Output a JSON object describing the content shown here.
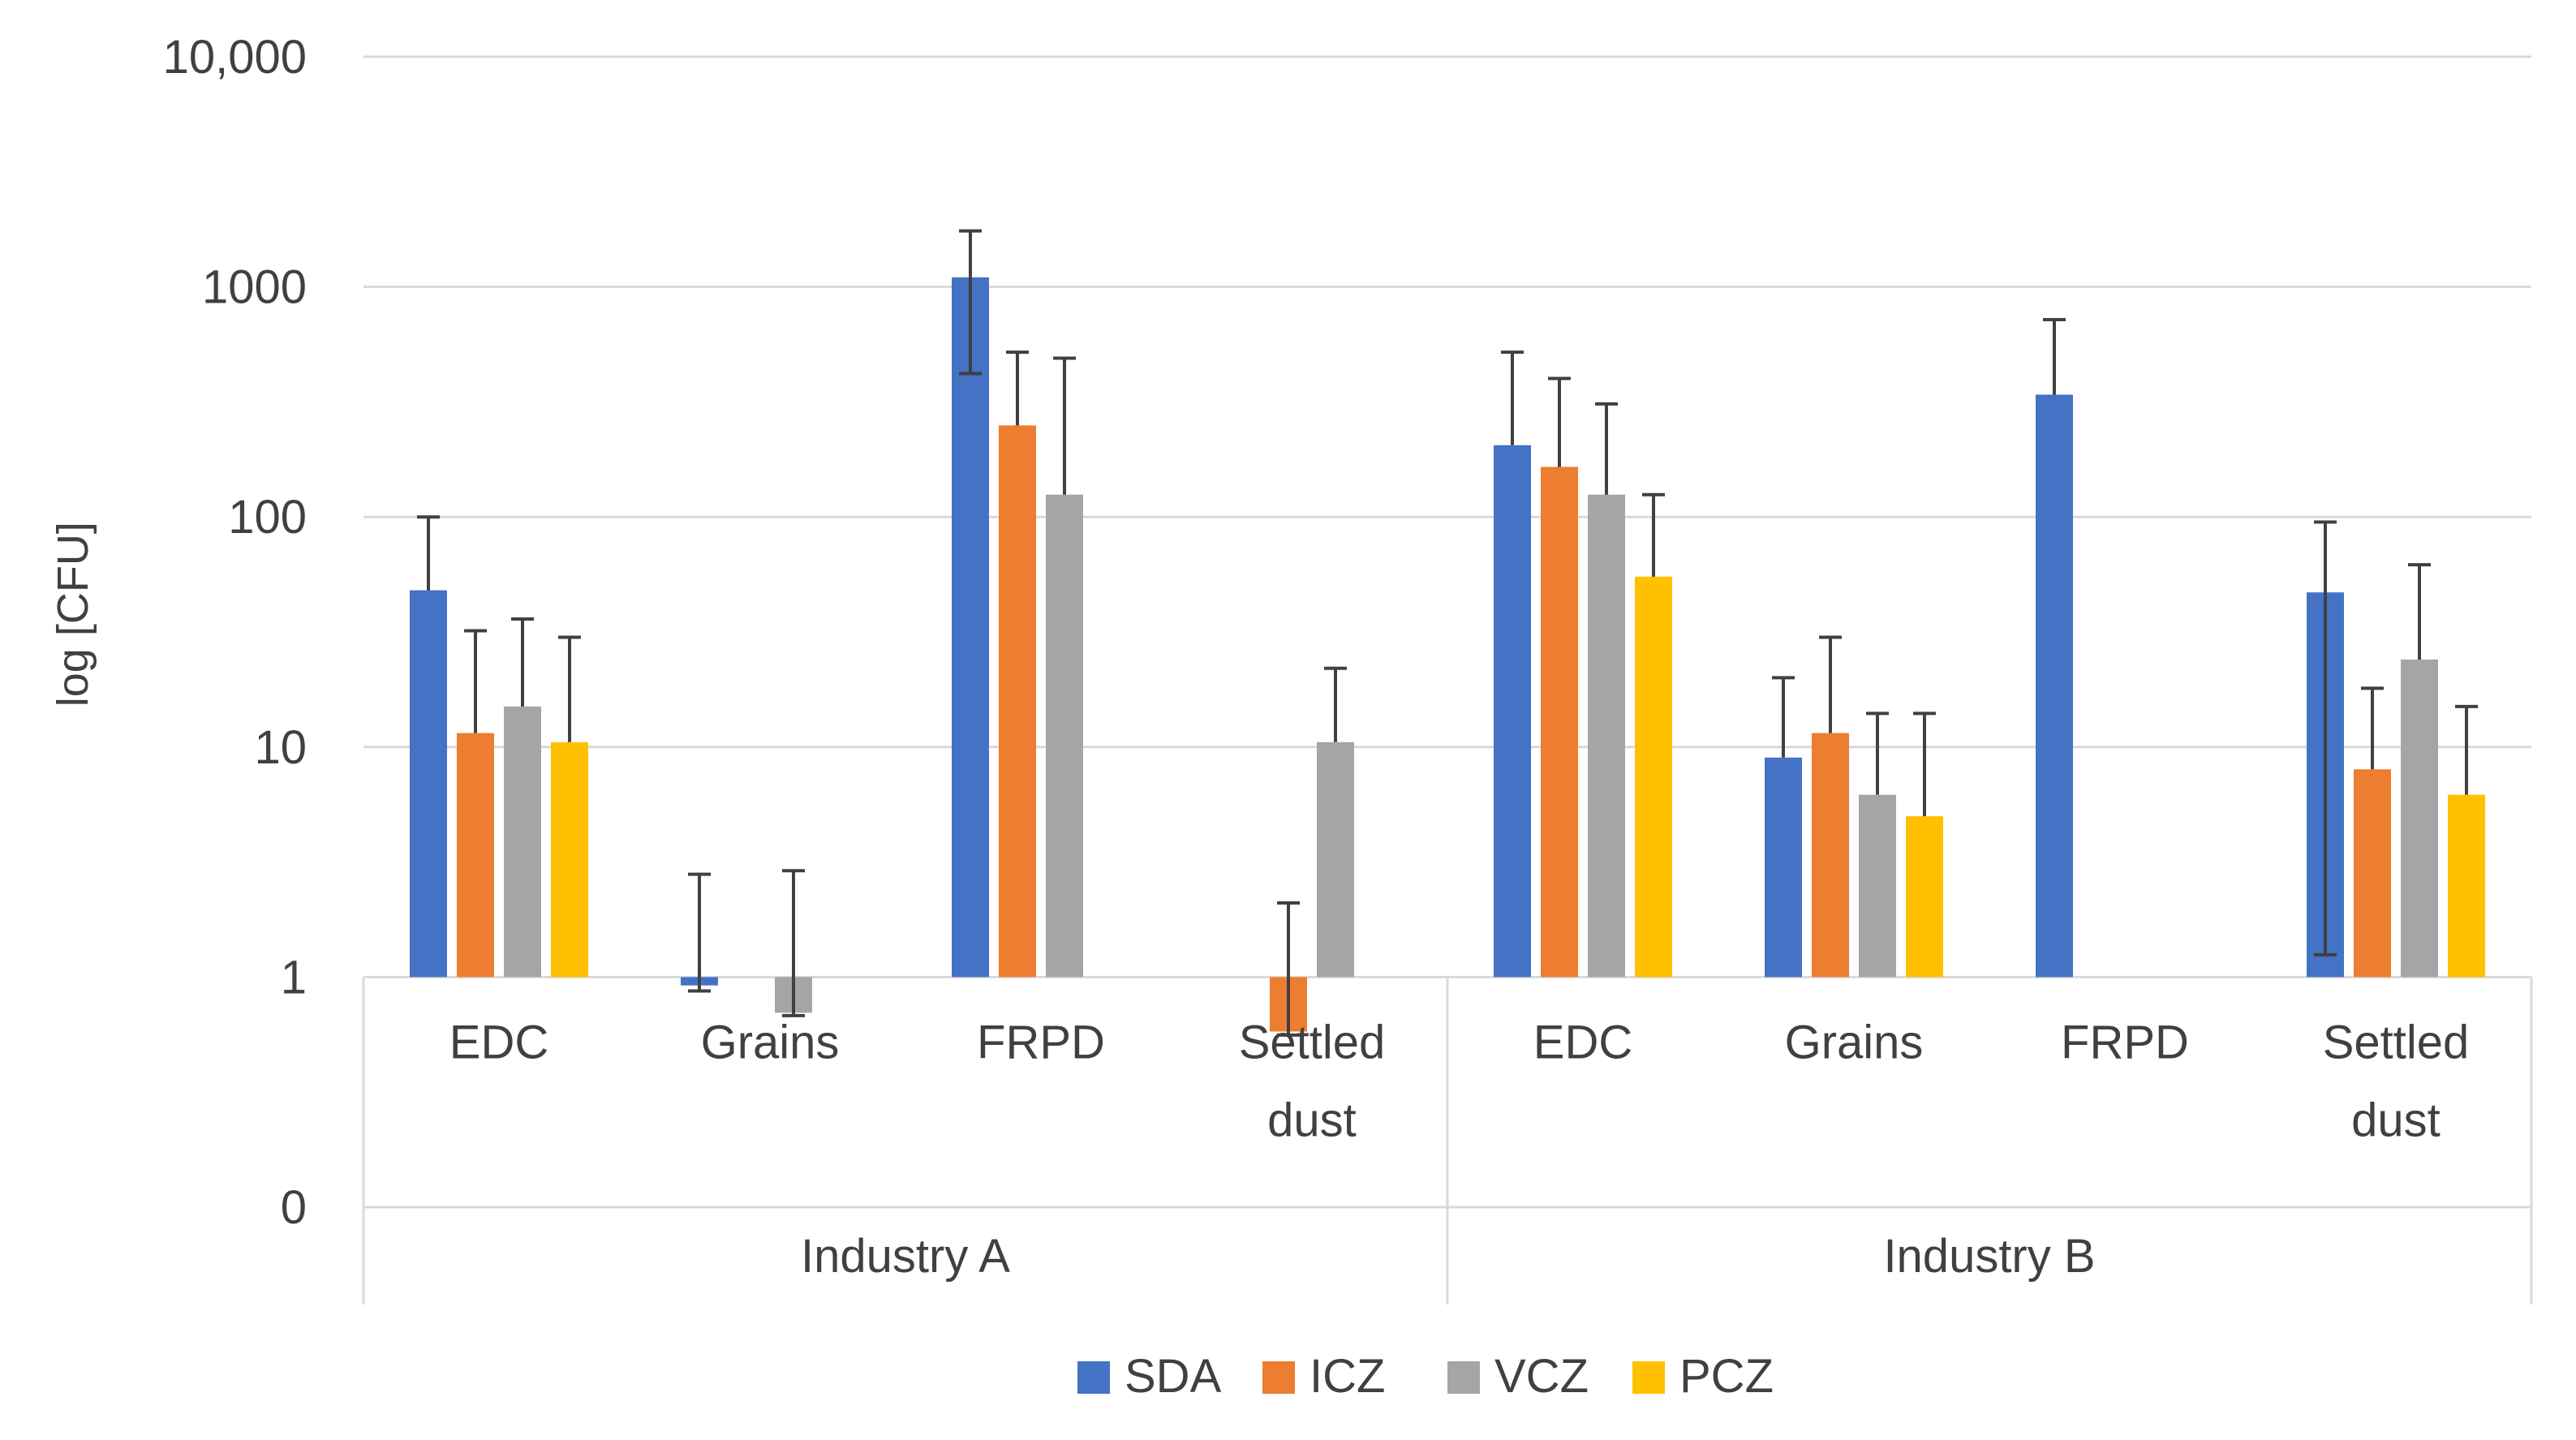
{
  "chart_data": {
    "type": "bar",
    "scale": "log",
    "ylabel": "log [CFU]",
    "y_ticks": [
      {
        "value": 0.1,
        "label": "0"
      },
      {
        "value": 1,
        "label": "1"
      },
      {
        "value": 10,
        "label": "10"
      },
      {
        "value": 100,
        "label": "100"
      },
      {
        "value": 1000,
        "label": "1000"
      },
      {
        "value": 10000,
        "label": "10,000"
      }
    ],
    "ylim": [
      0.1,
      10000
    ],
    "baseline": 1,
    "grid": true,
    "legend_position": "bottom",
    "groups": [
      {
        "label": "Industry A",
        "categories": [
          "EDC",
          "Grains",
          "FRPD",
          "Settled dust"
        ]
      },
      {
        "label": "Industry B",
        "categories": [
          "EDC",
          "Grains",
          "FRPD",
          "Settled dust"
        ]
      }
    ],
    "category_labels": [
      [
        "EDC"
      ],
      [
        "Grains"
      ],
      [
        "FRPD"
      ],
      [
        "Settled",
        "dust"
      ],
      [
        "EDC"
      ],
      [
        "Grains"
      ],
      [
        "FRPD"
      ],
      [
        "Settled",
        "dust"
      ]
    ],
    "series": [
      {
        "name": "SDA",
        "color": "#4472C4",
        "values": [
          48,
          0.92,
          1100,
          null,
          205,
          9,
          340,
          47
        ],
        "error_top": [
          100,
          2.8,
          1750,
          null,
          520,
          20,
          720,
          95
        ],
        "error_bottom": [
          null,
          0.87,
          420,
          null,
          null,
          null,
          null,
          1.25
        ]
      },
      {
        "name": "ICZ",
        "color": "#ED7D31",
        "values": [
          11.5,
          null,
          250,
          0.58,
          165,
          11.5,
          null,
          8
        ],
        "error_top": [
          32,
          null,
          520,
          2.1,
          400,
          30,
          null,
          18
        ],
        "error_bottom": [
          null,
          null,
          null,
          0.56,
          null,
          null,
          null,
          null
        ]
      },
      {
        "name": "VCZ",
        "color": "#A5A5A5",
        "values": [
          15,
          0.7,
          125,
          10.5,
          125,
          6.2,
          null,
          24
        ],
        "error_top": [
          36,
          2.9,
          490,
          22,
          310,
          14,
          null,
          62
        ],
        "error_bottom": [
          null,
          0.68,
          null,
          null,
          null,
          null,
          null,
          null
        ]
      },
      {
        "name": "PCZ",
        "color": "#FFC000",
        "values": [
          10.5,
          null,
          null,
          null,
          55,
          5,
          null,
          6.2
        ],
        "error_top": [
          30,
          null,
          null,
          null,
          125,
          14,
          null,
          15
        ],
        "error_bottom": [
          null,
          null,
          null,
          null,
          null,
          null,
          null,
          null
        ]
      }
    ]
  }
}
